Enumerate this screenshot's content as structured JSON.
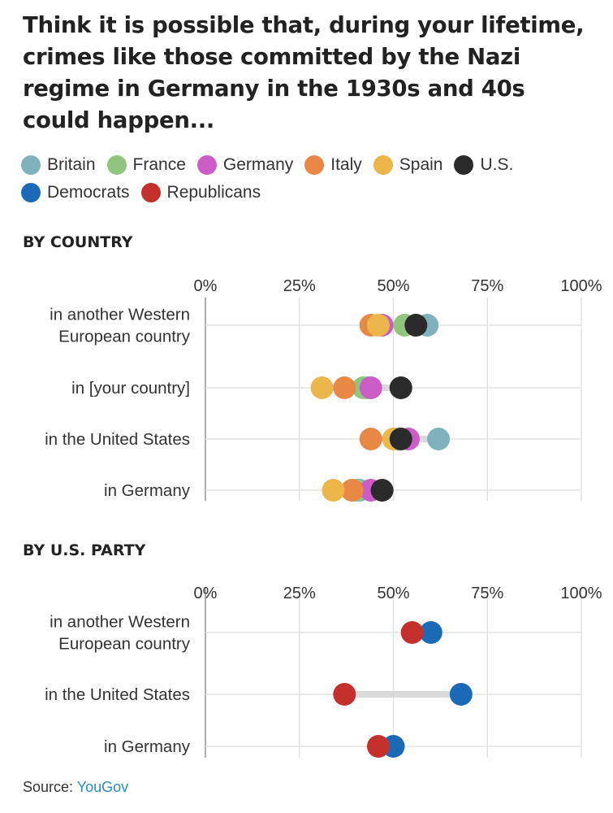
{
  "title": "Think it is possible that, during your lifetime, crimes like those committed by the Nazi regime in Germany in the 1930s and 40s could happen...",
  "legend": [
    {
      "name": "Britain",
      "color": "#7fb2bd"
    },
    {
      "name": "France",
      "color": "#8fc57f"
    },
    {
      "name": "Germany",
      "color": "#cc5cc6"
    },
    {
      "name": "Italy",
      "color": "#e98745"
    },
    {
      "name": "Spain",
      "color": "#edb64b"
    },
    {
      "name": "U.S.",
      "color": "#2b2b2b"
    },
    {
      "name": "Democrats",
      "color": "#1b6ab8"
    },
    {
      "name": "Republicans",
      "color": "#c4302b"
    }
  ],
  "source": {
    "label": "Source:",
    "link": "YouGov"
  },
  "chart_data": [
    {
      "type": "scatter",
      "title": "BY COUNTRY",
      "xlim": [
        0,
        100
      ],
      "x_ticks": [
        "0%",
        "25%",
        "50%",
        "75%",
        "100%"
      ],
      "categories": [
        [
          "in another Western",
          "European country"
        ],
        [
          "in [your country]"
        ],
        [
          "in the United States"
        ],
        [
          "in Germany"
        ]
      ],
      "series": [
        {
          "name": "Britain",
          "color": "#7fb2bd",
          "values": [
            59,
            43,
            62,
            41
          ]
        },
        {
          "name": "France",
          "color": "#8fc57f",
          "values": [
            53,
            42,
            51,
            40
          ]
        },
        {
          "name": "Germany",
          "color": "#cc5cc6",
          "values": [
            47,
            44,
            54,
            44
          ]
        },
        {
          "name": "Italy",
          "color": "#e98745",
          "values": [
            44,
            37,
            44,
            39
          ]
        },
        {
          "name": "Spain",
          "color": "#edb64b",
          "values": [
            46,
            31,
            50,
            34
          ]
        },
        {
          "name": "U.S.",
          "color": "#2b2b2b",
          "values": [
            56,
            52,
            52,
            47
          ]
        }
      ]
    },
    {
      "type": "scatter",
      "title": "BY U.S. PARTY",
      "xlim": [
        0,
        100
      ],
      "x_ticks": [
        "0%",
        "25%",
        "50%",
        "75%",
        "100%"
      ],
      "categories": [
        [
          "in another Western",
          "European country"
        ],
        [
          "in the United States"
        ],
        [
          "in Germany"
        ]
      ],
      "series": [
        {
          "name": "Democrats",
          "color": "#1b6ab8",
          "values": [
            60,
            68,
            50
          ]
        },
        {
          "name": "Republicans",
          "color": "#c4302b",
          "values": [
            55,
            37,
            46
          ]
        }
      ]
    }
  ]
}
